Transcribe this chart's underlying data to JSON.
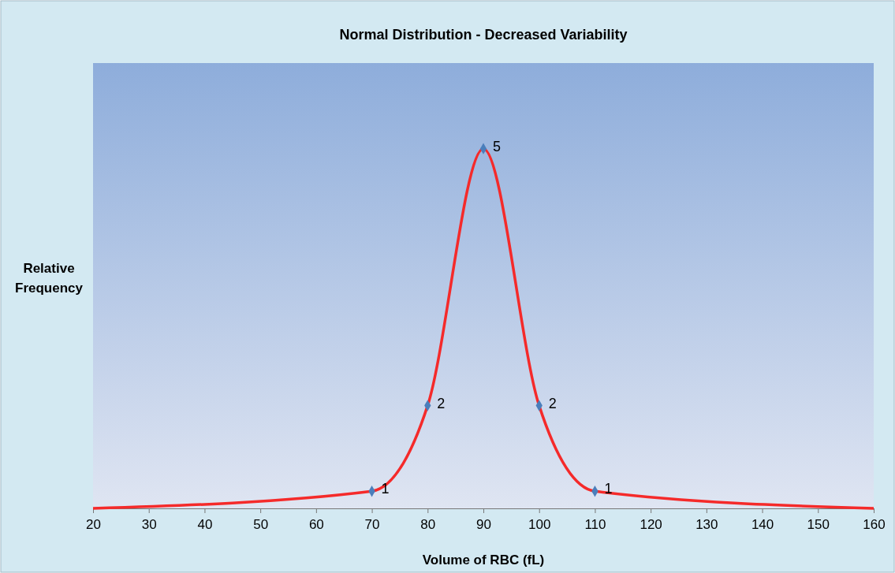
{
  "chart_data": {
    "type": "line",
    "title": "Normal Distribution - Decreased Variability",
    "xlabel": "Volume of RBC (fL)",
    "ylabel": "Relative Frequency",
    "xlim": [
      20,
      160
    ],
    "xticks": [
      20,
      30,
      40,
      50,
      60,
      70,
      80,
      90,
      100,
      110,
      120,
      130,
      140,
      150,
      160
    ],
    "ylim": [
      0.8,
      6
    ],
    "tick_labels": "x",
    "grid": false,
    "series": [
      {
        "type": "line",
        "color": "#f52a2a",
        "line_style": "solid",
        "marker": "none",
        "x": [
          20,
          70,
          80,
          90,
          100,
          110,
          160
        ],
        "values": [
          0.8,
          1,
          2,
          5,
          2,
          1,
          0.8
        ]
      },
      {
        "type": "scatter",
        "color": "#4a7ebb",
        "marker": "diamond",
        "x": [
          70,
          80,
          90,
          100,
          110
        ],
        "values": [
          1,
          2,
          5,
          2,
          1
        ],
        "value_labels": [
          "1",
          "2",
          "5",
          "2",
          "1"
        ]
      }
    ]
  }
}
